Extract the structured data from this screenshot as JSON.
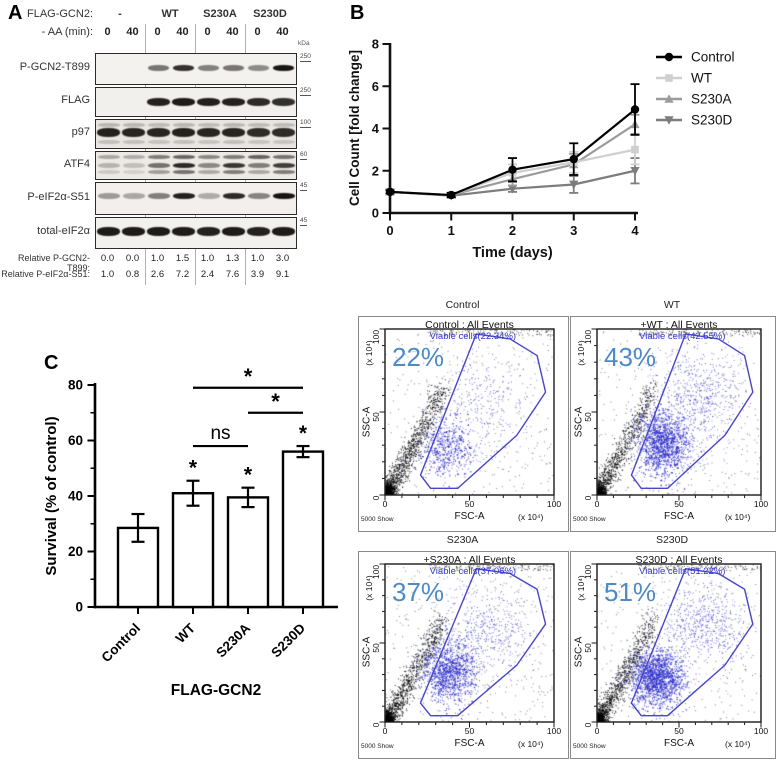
{
  "figure": {
    "panel_a_letter": "A",
    "panel_b_letter": "B",
    "panel_c_letter": "C"
  },
  "panel_a": {
    "header_row1_label": "FLAG-GCN2:",
    "header_row2_label": "- AA (min):",
    "groups": [
      "-",
      "WT",
      "S230A",
      "S230D"
    ],
    "lane_times": [
      "0",
      "40",
      "0",
      "40",
      "0",
      "40",
      "0",
      "40"
    ],
    "kda_unit": "kDa",
    "rows": [
      {
        "label": "P-GCN2-T899",
        "kda": "250",
        "layers": [
          {
            "dy": 0.45,
            "h": 6,
            "w": 21,
            "vals": [
              0,
              0,
              0.55,
              0.85,
              0.5,
              0.55,
              0.45,
              0.97
            ]
          }
        ]
      },
      {
        "label": "FLAG",
        "kda": "250",
        "layers": [
          {
            "dy": 0.5,
            "h": 8,
            "w": 23,
            "vals": [
              0,
              0,
              0.92,
              0.95,
              0.93,
              0.92,
              0.88,
              0.85
            ]
          }
        ]
      },
      {
        "label": "p97",
        "kda": "100",
        "layers": [
          {
            "dy": 0.18,
            "h": 4,
            "w": 22,
            "vals": [
              0.22,
              0.22,
              0.2,
              0.22,
              0.2,
              0.22,
              0.2,
              0.2
            ]
          },
          {
            "dy": 0.45,
            "h": 9,
            "w": 23,
            "vals": [
              0.92,
              0.9,
              0.9,
              0.92,
              0.9,
              0.9,
              0.87,
              0.87
            ]
          },
          {
            "dy": 0.8,
            "h": 4,
            "w": 22,
            "vals": [
              0.18,
              0.18,
              0.16,
              0.18,
              0.16,
              0.18,
              0.16,
              0.16
            ]
          }
        ]
      },
      {
        "label": "ATF4",
        "kda": "60",
        "layers": [
          {
            "dy": 0.18,
            "h": 4,
            "w": 22,
            "vals": [
              0.3,
              0.28,
              0.5,
              0.6,
              0.45,
              0.5,
              0.62,
              0.55
            ]
          },
          {
            "dy": 0.5,
            "h": 5,
            "w": 22,
            "vals": [
              0.25,
              0.2,
              0.55,
              0.88,
              0.45,
              0.82,
              0.5,
              0.78
            ]
          },
          {
            "dy": 0.75,
            "h": 4,
            "w": 22,
            "vals": [
              0.15,
              0.12,
              0.35,
              0.55,
              0.3,
              0.5,
              0.3,
              0.5
            ]
          }
        ]
      },
      {
        "label": "P-eIF2α-S51",
        "kda": "45",
        "layers": [
          {
            "dy": 0.42,
            "h": 6,
            "w": 22,
            "vals": [
              0.38,
              0.32,
              0.5,
              0.92,
              0.3,
              0.88,
              0.48,
              0.98
            ]
          }
        ]
      },
      {
        "label": "total-eIF2α",
        "kda": "45",
        "layers": [
          {
            "dy": 0.45,
            "h": 9,
            "w": 23,
            "vals": [
              0.95,
              0.95,
              0.95,
              0.95,
              0.92,
              0.95,
              0.92,
              0.95
            ]
          }
        ]
      }
    ],
    "quantification": [
      {
        "label": "Relative P-GCN2-T899:",
        "values": [
          "0.0",
          "0.0",
          "1.0",
          "1.5",
          "1.0",
          "1.3",
          "1.0",
          "3.0"
        ]
      },
      {
        "label": "Relative P-eIF2α-S51:",
        "values": [
          "1.0",
          "0.8",
          "2.6",
          "7.2",
          "2.4",
          "7.6",
          "3.9",
          "9.1"
        ]
      }
    ]
  },
  "chart_data": [
    {
      "type": "line",
      "panel": "B",
      "title": "",
      "ylabel": "Cell Count [fold change]",
      "xlabel": "Time (days)",
      "x": [
        0,
        1,
        2,
        3,
        4
      ],
      "ylim": [
        0,
        8
      ],
      "yticks": [
        0,
        2,
        4,
        6,
        8
      ],
      "grid": false,
      "legend_position": "right",
      "series": [
        {
          "name": "Control",
          "color": "#000000",
          "marker": "circle",
          "values": [
            1.0,
            0.85,
            2.05,
            2.55,
            4.9
          ],
          "errors": [
            0.08,
            0.1,
            0.55,
            0.75,
            1.2
          ]
        },
        {
          "name": "WT",
          "color": "#cfcfcf",
          "marker": "square",
          "values": [
            1.0,
            0.85,
            1.9,
            2.4,
            3.0
          ],
          "errors": [
            0.08,
            0.1,
            0.4,
            0.5,
            0.7
          ]
        },
        {
          "name": "S230A",
          "color": "#9b9b9b",
          "marker": "triangle-up",
          "values": [
            1.0,
            0.85,
            1.6,
            2.3,
            4.2
          ],
          "errors": [
            0.08,
            0.1,
            0.3,
            0.5,
            0.45
          ]
        },
        {
          "name": "S230D",
          "color": "#7d7d7d",
          "marker": "triangle-down",
          "values": [
            1.0,
            0.82,
            1.15,
            1.35,
            2.0
          ],
          "errors": [
            0.08,
            0.1,
            0.15,
            0.4,
            0.6
          ]
        }
      ]
    },
    {
      "type": "bar",
      "panel": "C",
      "ylabel": "Survival (% of control)",
      "xlabel": "FLAG-GCN2",
      "categories": [
        "Control",
        "WT",
        "S230A",
        "S230D"
      ],
      "values": [
        28.5,
        41,
        39.5,
        56
      ],
      "errors": [
        5,
        4.5,
        3.5,
        2
      ],
      "ylim": [
        0,
        80
      ],
      "yticks": [
        0,
        20,
        40,
        60,
        80
      ],
      "grid": false,
      "bar_significance": [
        "",
        "*",
        "*",
        "*"
      ],
      "comparisons": [
        {
          "from": 1,
          "to": 2,
          "label": "ns",
          "height": 58
        },
        {
          "from": 2,
          "to": 3,
          "label": "*",
          "height": 70
        },
        {
          "from": 1,
          "to": 3,
          "label": "*",
          "height": 79
        }
      ]
    },
    {
      "type": "scatter",
      "subtype": "flow_cytometry",
      "xlabel": "FSC-A",
      "ylabel": "SSC-A",
      "x_units": "(x 10⁴)",
      "y_units": "(x 10⁴)",
      "xlim": [
        0,
        100
      ],
      "ylim": [
        0,
        100
      ],
      "xticks": [
        0,
        50,
        100
      ],
      "yticks": [
        0,
        50,
        100
      ],
      "corner_text": "5000 Show",
      "gate_polygon": [
        [
          21,
          12
        ],
        [
          27,
          4
        ],
        [
          43,
          4
        ],
        [
          78,
          36
        ],
        [
          95,
          62
        ],
        [
          90,
          84
        ],
        [
          74,
          94
        ],
        [
          54,
          97
        ]
      ],
      "colors": {
        "gate": "#4646c8",
        "gate_text": "#3535cf",
        "percent_text": "#4e8ac6",
        "viable_dots": "#2626c9",
        "debris_dots": "#000000"
      },
      "plots": [
        {
          "label": "Control",
          "title": "Control : All Events",
          "gate_text": "Viable cells(22.34%)",
          "percent_text": "22%",
          "viable_percent": 22.34,
          "clusters": {
            "debris_n": 1100,
            "background_n": 320,
            "top_band_n": 130,
            "main": {
              "n": 520,
              "cx": 36,
              "cy": 30,
              "sx": 8,
              "sy": 9
            },
            "tail": {
              "n": 170,
              "cx": 58,
              "cy": 56,
              "sx": 13,
              "sy": 13
            },
            "sparse_n": 130
          }
        },
        {
          "label": "WT",
          "title": "+WT : All Events",
          "gate_text": "Viable cells(42.55%)",
          "percent_text": "43%",
          "viable_percent": 42.55,
          "clusters": {
            "debris_n": 850,
            "background_n": 300,
            "top_band_n": 130,
            "main": {
              "n": 1350,
              "cx": 40,
              "cy": 31,
              "sx": 8,
              "sy": 10
            },
            "tail": {
              "n": 430,
              "cx": 62,
              "cy": 60,
              "sx": 12,
              "sy": 12
            },
            "sparse_n": 160
          }
        },
        {
          "label": "S230A",
          "title": "+S230A : All Events",
          "gate_text": "Viable cells(37.06%)",
          "percent_text": "37%",
          "viable_percent": 37.06,
          "clusters": {
            "debris_n": 950,
            "background_n": 320,
            "top_band_n": 130,
            "main": {
              "n": 1100,
              "cx": 38,
              "cy": 32,
              "sx": 8,
              "sy": 10
            },
            "tail": {
              "n": 340,
              "cx": 60,
              "cy": 58,
              "sx": 13,
              "sy": 12
            },
            "sparse_n": 160
          }
        },
        {
          "label": "S230D",
          "title": "S230D : All Events",
          "gate_text": "Viable cells(51.22%)",
          "percent_text": "51%",
          "viable_percent": 51.22,
          "clusters": {
            "debris_n": 950,
            "background_n": 300,
            "top_band_n": 130,
            "main": {
              "n": 1550,
              "cx": 36,
              "cy": 28,
              "sx": 8,
              "sy": 9
            },
            "tail": {
              "n": 440,
              "cx": 64,
              "cy": 62,
              "sx": 12,
              "sy": 12
            },
            "sparse_n": 160
          }
        }
      ]
    }
  ]
}
